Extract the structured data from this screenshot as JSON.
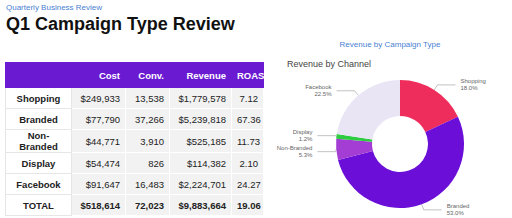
{
  "header": {
    "kicker": "Quarterly Business Review",
    "title": "Q1 Campaign Type Review"
  },
  "table": {
    "columns": [
      "Cost",
      "Conv.",
      "Revenue",
      "ROAS"
    ],
    "rows": [
      {
        "label": "Shopping",
        "cells": [
          "$249,933",
          "13,538",
          "$1,779,578",
          "7.12"
        ]
      },
      {
        "label": "Branded",
        "cells": [
          "$77,790",
          "37,266",
          "$5,239,818",
          "67.36"
        ]
      },
      {
        "label": "Non-Branded",
        "cells": [
          "$44,771",
          "3,910",
          "$525,185",
          "11.73"
        ]
      },
      {
        "label": "Display",
        "cells": [
          "$54,474",
          "826",
          "$114,382",
          "2.10"
        ]
      },
      {
        "label": "Facebook",
        "cells": [
          "$91,647",
          "16,483",
          "$2,224,701",
          "24.27"
        ]
      },
      {
        "label": "TOTAL",
        "cells": [
          "$518,614",
          "72,023",
          "$9,883,664",
          "19.06"
        ]
      }
    ]
  },
  "chart_data": {
    "type": "pie",
    "heading": "Revenue by Campaign Type",
    "title": "Revenue by Channel",
    "categories": [
      "Shopping",
      "Branded",
      "Non-Branded",
      "Display",
      "Facebook"
    ],
    "values": [
      18.0,
      53.0,
      5.3,
      1.2,
      22.5
    ],
    "value_labels": [
      "18.0%",
      "53.0%",
      "5.3%",
      "1.2%",
      "22.5%"
    ],
    "colors": [
      "#ef2d5c",
      "#6a0ed8",
      "#a43dd3",
      "#2ecc40",
      "#e9e5f5"
    ],
    "data_labels": true
  }
}
